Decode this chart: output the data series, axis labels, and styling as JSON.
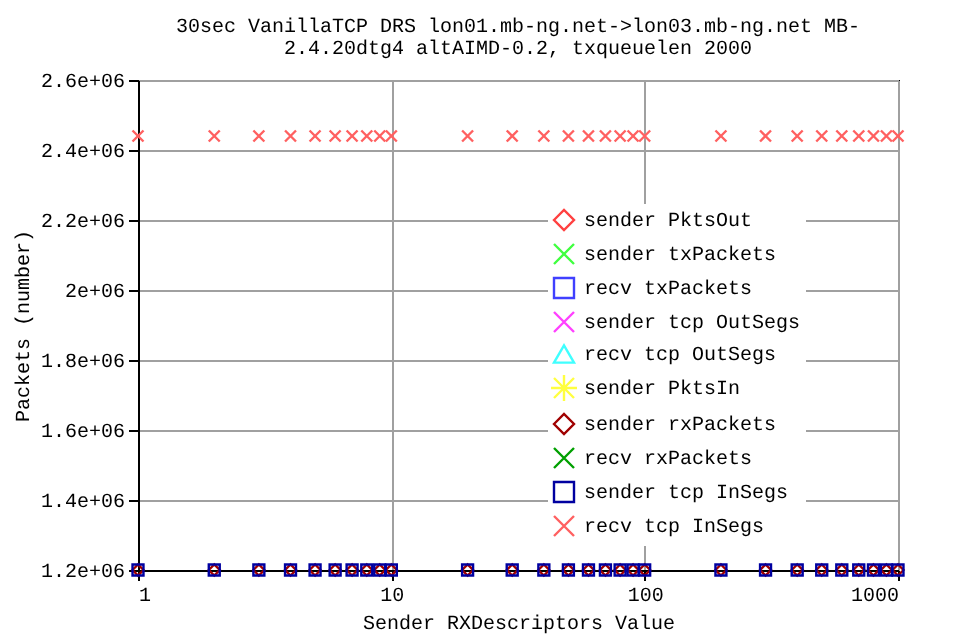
{
  "chart_data": {
    "type": "scatter",
    "title": "30sec VanillaTCP DRS lon01.mb-ng.net->lon03.mb-ng.net MB-",
    "subtitle": "2.4.20dtg4 altAIMD-0.2, txqueuelen 2000",
    "xlabel": "Sender RXDescriptors Value",
    "ylabel": "Packets (number)",
    "x": [
      1,
      2,
      3,
      4,
      5,
      6,
      7,
      8,
      9,
      10,
      20,
      30,
      40,
      50,
      60,
      70,
      80,
      90,
      100,
      200,
      300,
      400,
      500,
      600,
      700,
      800,
      900,
      1000
    ],
    "series": [
      {
        "name": "sender PktsOut",
        "color": "#ff4040",
        "marker": "diamond",
        "values": [
          null,
          null,
          null,
          null,
          null,
          null,
          null,
          null,
          null,
          null,
          null,
          null,
          null,
          null,
          null,
          null,
          null,
          null,
          null,
          null,
          null,
          null,
          null,
          null,
          null,
          null,
          null,
          null
        ]
      },
      {
        "name": "sender txPackets",
        "color": "#40ff40",
        "marker": "cross",
        "values": [
          null,
          null,
          null,
          null,
          null,
          null,
          null,
          null,
          null,
          null,
          null,
          null,
          null,
          null,
          null,
          null,
          null,
          null,
          null,
          null,
          null,
          null,
          null,
          null,
          null,
          null,
          null,
          null
        ]
      },
      {
        "name": "recv txPackets",
        "color": "#4040ff",
        "marker": "square",
        "values": [
          null,
          null,
          null,
          null,
          null,
          null,
          null,
          null,
          null,
          null,
          null,
          null,
          null,
          null,
          null,
          null,
          null,
          null,
          null,
          null,
          null,
          null,
          null,
          null,
          null,
          null,
          null,
          null
        ]
      },
      {
        "name": "sender tcp OutSegs",
        "color": "#ff40ff",
        "marker": "cross",
        "values": [
          null,
          null,
          null,
          null,
          null,
          null,
          null,
          null,
          null,
          null,
          null,
          null,
          null,
          null,
          null,
          null,
          null,
          null,
          null,
          null,
          null,
          null,
          null,
          null,
          null,
          null,
          null,
          null
        ]
      },
      {
        "name": "recv tcp OutSegs",
        "color": "#40ffff",
        "marker": "triangle",
        "values": [
          null,
          null,
          null,
          null,
          null,
          null,
          null,
          null,
          null,
          null,
          null,
          null,
          null,
          null,
          null,
          null,
          null,
          null,
          null,
          null,
          null,
          null,
          null,
          null,
          null,
          null,
          null,
          null
        ]
      },
      {
        "name": "sender PktsIn",
        "color": "#ffff40",
        "marker": "star",
        "values": [
          null,
          null,
          null,
          null,
          null,
          null,
          null,
          null,
          null,
          null,
          null,
          null,
          null,
          null,
          null,
          null,
          null,
          null,
          null,
          null,
          null,
          null,
          null,
          null,
          null,
          null,
          null,
          null
        ]
      },
      {
        "name": "sender rxPackets",
        "color": "#a00000",
        "marker": "diamond",
        "values": [
          1200000,
          1200000,
          1200000,
          1200000,
          1200000,
          1200000,
          1200000,
          1200000,
          1200000,
          1200000,
          1200000,
          1200000,
          1200000,
          1200000,
          1200000,
          1200000,
          1200000,
          1200000,
          1200000,
          1200000,
          1200000,
          1200000,
          1200000,
          1200000,
          1200000,
          1200000,
          1200000,
          1200000
        ]
      },
      {
        "name": "recv rxPackets",
        "color": "#00a000",
        "marker": "cross",
        "values": [
          null,
          null,
          null,
          null,
          null,
          null,
          null,
          null,
          null,
          null,
          null,
          null,
          null,
          null,
          null,
          null,
          null,
          null,
          null,
          null,
          null,
          null,
          null,
          null,
          null,
          null,
          null,
          null
        ]
      },
      {
        "name": "sender tcp InSegs",
        "color": "#0000a0",
        "marker": "square",
        "values": [
          1200000,
          1200000,
          1200000,
          1200000,
          1200000,
          1200000,
          1200000,
          1200000,
          1200000,
          1200000,
          1200000,
          1200000,
          1200000,
          1200000,
          1200000,
          1200000,
          1200000,
          1200000,
          1200000,
          1200000,
          1200000,
          1200000,
          1200000,
          1200000,
          1200000,
          1200000,
          1200000,
          1200000
        ]
      },
      {
        "name": "recv tcp InSegs",
        "color": "#ff6060",
        "marker": "cross",
        "values": [
          2440000,
          2440000,
          2440000,
          2440000,
          2440000,
          2440000,
          2440000,
          2440000,
          2440000,
          2440000,
          2440000,
          2440000,
          2440000,
          2440000,
          2440000,
          2440000,
          2440000,
          2440000,
          2440000,
          2440000,
          2440000,
          2440000,
          2440000,
          2440000,
          2440000,
          2440000,
          2440000,
          2440000
        ]
      }
    ],
    "log": "x",
    "xlim": [
      1,
      1000
    ],
    "xticks": [
      1,
      10,
      100,
      1000
    ],
    "ylim": [
      1200000,
      2600000
    ],
    "yticks": [
      {
        "value": 1200000,
        "label": "1.2e+06"
      },
      {
        "value": 1400000,
        "label": "1.4e+06"
      },
      {
        "value": 1600000,
        "label": "1.6e+06"
      },
      {
        "value": 1800000,
        "label": "1.8e+06"
      },
      {
        "value": 2000000,
        "label": "2e+06"
      },
      {
        "value": 2200000,
        "label": "2.2e+06"
      },
      {
        "value": 2400000,
        "label": "2.4e+06"
      },
      {
        "value": 2600000,
        "label": "2.6e+06"
      }
    ],
    "grid": true,
    "legend": "right"
  }
}
